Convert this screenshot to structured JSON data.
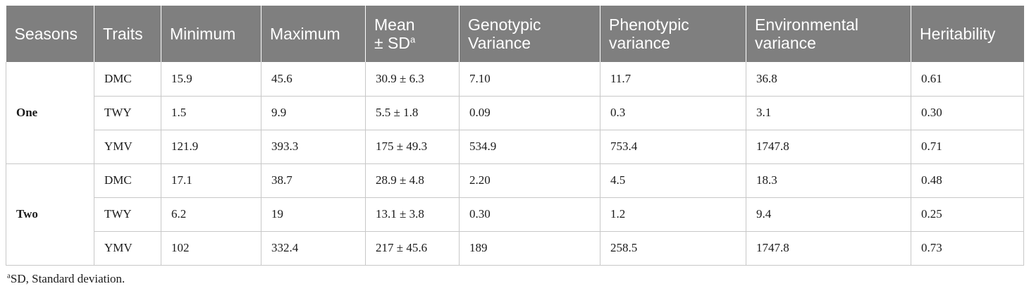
{
  "table": {
    "headers": {
      "seasons": "Seasons",
      "traits": "Traits",
      "minimum": "Minimum",
      "maximum": "Maximum",
      "mean_line1": "Mean",
      "mean_line2": "± SD",
      "mean_sup": "a",
      "genotypic_line1": "Genotypic",
      "genotypic_line2": "Variance",
      "phenotypic_line1": "Phenotypic",
      "phenotypic_line2": "variance",
      "environmental_line1": "Environmental",
      "environmental_line2": "variance",
      "heritability": "Heritability"
    },
    "groups": [
      {
        "season": "One",
        "rows": [
          {
            "trait": "DMC",
            "min": "15.9",
            "max": "45.6",
            "mean_sd": "30.9 ± 6.3",
            "genotypic": "7.10",
            "phenotypic": "11.7",
            "environmental": "36.8",
            "heritability": "0.61"
          },
          {
            "trait": "TWY",
            "min": "1.5",
            "max": "9.9",
            "mean_sd": "5.5 ± 1.8",
            "genotypic": "0.09",
            "phenotypic": "0.3",
            "environmental": "3.1",
            "heritability": "0.30"
          },
          {
            "trait": "YMV",
            "min": "121.9",
            "max": "393.3",
            "mean_sd": "175 ± 49.3",
            "genotypic": "534.9",
            "phenotypic": "753.4",
            "environmental": "1747.8",
            "heritability": "0.71"
          }
        ]
      },
      {
        "season": "Two",
        "rows": [
          {
            "trait": "DMC",
            "min": "17.1",
            "max": "38.7",
            "mean_sd": "28.9 ± 4.8",
            "genotypic": "2.20",
            "phenotypic": "4.5",
            "environmental": "18.3",
            "heritability": "0.48"
          },
          {
            "trait": "TWY",
            "min": "6.2",
            "max": "19",
            "mean_sd": "13.1 ± 3.8",
            "genotypic": "0.30",
            "phenotypic": "1.2",
            "environmental": "9.4",
            "heritability": "0.25"
          },
          {
            "trait": "YMV",
            "min": "102",
            "max": "332.4",
            "mean_sd": "217 ± 45.6",
            "genotypic": "189",
            "phenotypic": "258.5",
            "environmental": "1747.8",
            "heritability": "0.73"
          }
        ]
      }
    ]
  },
  "footnote": {
    "marker": "a",
    "text": "SD, Standard deviation."
  }
}
